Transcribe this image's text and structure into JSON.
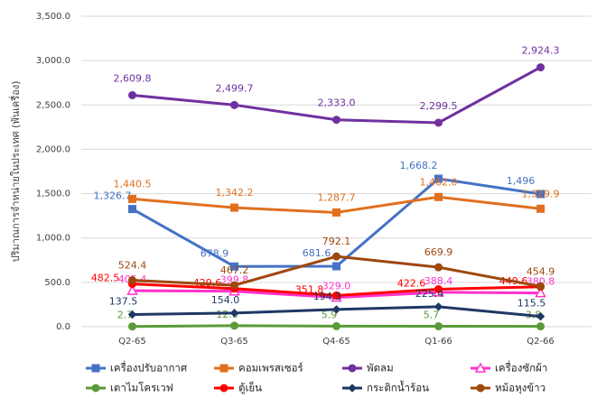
{
  "chart_data": {
    "type": "line",
    "y_label": "ปริมาณการจำหน่ายในประเทศ (พันเครื่อง)",
    "categories": [
      "Q2-65",
      "Q3-65",
      "Q4-65",
      "Q1-66",
      "Q2-66"
    ],
    "ylim": [
      0,
      3500
    ],
    "yticks": [
      {
        "value": 0,
        "label": "0.0"
      },
      {
        "value": 500,
        "label": "500.0"
      },
      {
        "value": 1000,
        "label": "1,000.0"
      },
      {
        "value": 1500,
        "label": "1,500.0"
      },
      {
        "value": 2000,
        "label": "2,000.0"
      },
      {
        "value": 2500,
        "label": "2,500.0"
      },
      {
        "value": 3000,
        "label": "3,000.0"
      },
      {
        "value": 3500,
        "label": "3,500.0"
      }
    ],
    "grid": true,
    "legend": "bottom",
    "series": [
      {
        "name": "เครื่องปรับอากาศ",
        "color": "#4472c4",
        "marker": "square",
        "values": [
          1326.7,
          678.9,
          681.6,
          1668.2,
          1496
        ],
        "value_labels": [
          "1,326.7",
          "678.9",
          "681.6",
          "1,668.2",
          "1,496"
        ]
      },
      {
        "name": "คอมเพรสเซอร์",
        "color": "#e07020",
        "marker": "square",
        "values": [
          1440.5,
          1342.2,
          1287.7,
          1462.0,
          1329.9
        ],
        "value_labels": [
          "1,440.5",
          "1,342.2",
          "1,287.7",
          "1,462.0",
          "1,329.9"
        ]
      },
      {
        "name": "พัดลม",
        "color": "#7030a0",
        "marker": "circle",
        "values": [
          2609.8,
          2499.7,
          2333.0,
          2299.5,
          2924.3
        ],
        "value_labels": [
          "2,609.8",
          "2,499.7",
          "2,333.0",
          "2,299.5",
          "2,924.3"
        ]
      },
      {
        "name": "เครื่องซักผ้า",
        "color": "#ff33cc",
        "marker": "triangle",
        "values": [
          405.4,
          399.8,
          329.0,
          388.4,
          380.8
        ],
        "value_labels": [
          "405.4",
          "399.8",
          "329.0",
          "388.4",
          "380.8"
        ]
      },
      {
        "name": "เตาไมโครเวฟ",
        "color": "#5b9a3a",
        "marker": "circle",
        "values": [
          2.7,
          12.0,
          5.9,
          5.7,
          3.8
        ],
        "value_labels": [
          "2.7",
          "12.0",
          "5.9",
          "5.7",
          "3.8"
        ]
      },
      {
        "name": "ตู้เย็น",
        "color": "#ff0000",
        "marker": "circle",
        "values": [
          482.5,
          429.6,
          351.8,
          422.6,
          449.6
        ],
        "value_labels": [
          "482.5",
          "429.6",
          "351.8",
          "422.6",
          "449.6"
        ]
      },
      {
        "name": "กระติกน้ำร้อน",
        "color": "#1f3864",
        "marker": "diamond",
        "values": [
          137.5,
          154.0,
          194.3,
          225.4,
          115.5
        ],
        "value_labels": [
          "137.5",
          "154.0",
          "194.3",
          "225.4",
          "115.5"
        ]
      },
      {
        "name": "หม้อหุงข้าว",
        "color": "#9e480e",
        "marker": "circle",
        "values": [
          524.4,
          467.2,
          792.1,
          669.9,
          454.9
        ],
        "value_labels": [
          "524.4",
          "467.2",
          "792.1",
          "669.9",
          "454.9"
        ]
      }
    ]
  }
}
